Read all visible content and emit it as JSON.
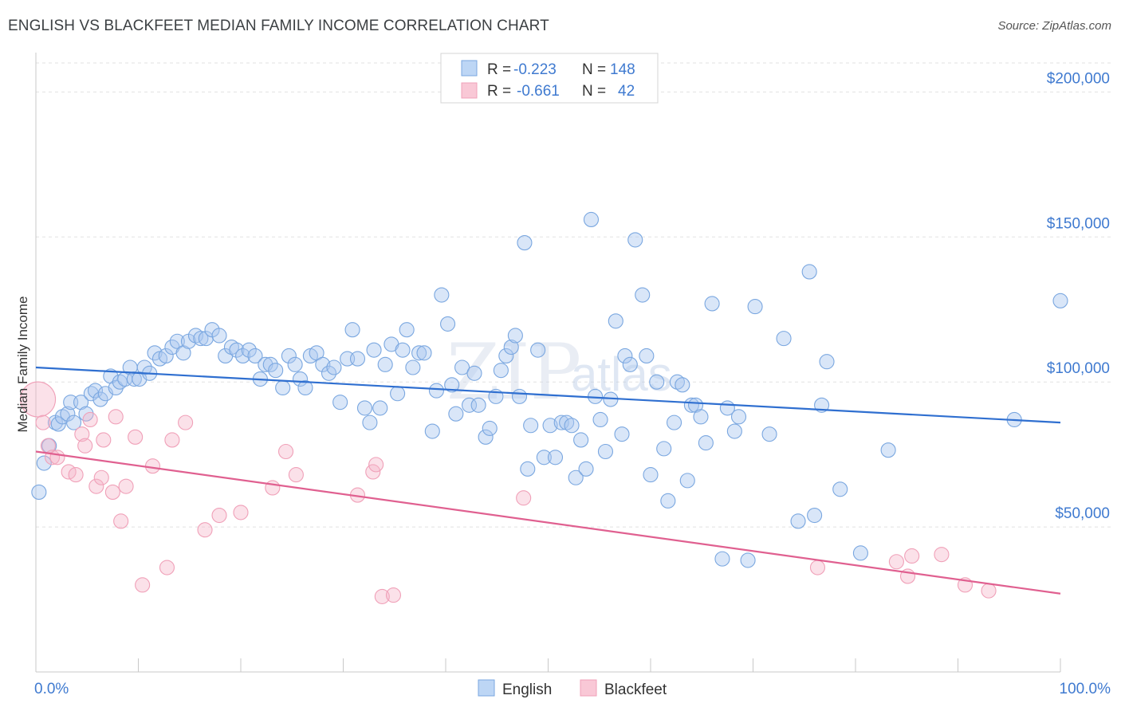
{
  "header": {
    "title": "ENGLISH VS BLACKFEET MEDIAN FAMILY INCOME CORRELATION CHART",
    "source": "Source: ZipAtlas.com"
  },
  "watermark": {
    "zip": "ZIP",
    "atlas": "atlas"
  },
  "legend_top": {
    "rows": [
      {
        "r_label": "R =",
        "r_value": "-0.223",
        "n_label": "N =",
        "n_value": "148",
        "color": "#a9c8f0"
      },
      {
        "r_label": "R =",
        "r_value": "-0.661",
        "n_label": "N =",
        "n_value": "42",
        "color": "#f5b8c9"
      }
    ]
  },
  "legend_bottom": {
    "english": "English",
    "blackfeet": "Blackfeet"
  },
  "chart_data": {
    "type": "scatter",
    "ylabel": "Median Family Income",
    "xlim": [
      0,
      100
    ],
    "ylim": [
      0,
      210000
    ],
    "x_tick_labels": [
      "0.0%",
      "100.0%"
    ],
    "y_ticks": [
      {
        "value": 50000,
        "label": "$50,000"
      },
      {
        "value": 100000,
        "label": "$100,000"
      },
      {
        "value": 150000,
        "label": "$150,000"
      },
      {
        "value": 200000,
        "label": "$200,000"
      }
    ],
    "grid": "horizontal dashed",
    "series": [
      {
        "name": "English",
        "color": "#7aa7e0",
        "line_color": "#2f6fd0",
        "trend": {
          "x": [
            0,
            100
          ],
          "y": [
            105000,
            86000
          ]
        },
        "points": [
          [
            0.3,
            62000
          ],
          [
            0.8,
            72000
          ],
          [
            1.3,
            78000
          ],
          [
            1.9,
            86000
          ],
          [
            2.2,
            85500
          ],
          [
            2.6,
            88000
          ],
          [
            3.1,
            89000
          ],
          [
            3.4,
            93000
          ],
          [
            3.7,
            86000
          ],
          [
            4.4,
            93000
          ],
          [
            4.9,
            89000
          ],
          [
            5.4,
            96000
          ],
          [
            5.8,
            97000
          ],
          [
            6.3,
            94000
          ],
          [
            6.8,
            96000
          ],
          [
            7.3,
            102000
          ],
          [
            7.8,
            98000
          ],
          [
            8.2,
            100000
          ],
          [
            8.7,
            101000
          ],
          [
            9.2,
            105000
          ],
          [
            9.6,
            101000
          ],
          [
            10.1,
            101000
          ],
          [
            10.6,
            105000
          ],
          [
            11.1,
            103000
          ],
          [
            11.6,
            110000
          ],
          [
            12.1,
            108000
          ],
          [
            12.7,
            109000
          ],
          [
            13.3,
            112000
          ],
          [
            13.8,
            114000
          ],
          [
            14.4,
            110000
          ],
          [
            14.9,
            114000
          ],
          [
            15.6,
            116000
          ],
          [
            16.1,
            115000
          ],
          [
            16.6,
            115000
          ],
          [
            17.2,
            118000
          ],
          [
            17.9,
            116000
          ],
          [
            18.5,
            109000
          ],
          [
            19.1,
            112000
          ],
          [
            19.6,
            111000
          ],
          [
            20.2,
            109000
          ],
          [
            20.8,
            111000
          ],
          [
            21.4,
            109000
          ],
          [
            21.9,
            101000
          ],
          [
            22.4,
            106000
          ],
          [
            22.9,
            106000
          ],
          [
            23.4,
            104000
          ],
          [
            24.1,
            98000
          ],
          [
            24.7,
            109000
          ],
          [
            25.3,
            106000
          ],
          [
            25.8,
            101000
          ],
          [
            26.3,
            98000
          ],
          [
            26.8,
            109000
          ],
          [
            27.4,
            110000
          ],
          [
            28.0,
            106000
          ],
          [
            28.6,
            103000
          ],
          [
            29.1,
            105000
          ],
          [
            29.7,
            93000
          ],
          [
            30.4,
            108000
          ],
          [
            30.9,
            118000
          ],
          [
            31.4,
            108000
          ],
          [
            32.1,
            91000
          ],
          [
            32.6,
            86000
          ],
          [
            33.0,
            111000
          ],
          [
            33.6,
            91000
          ],
          [
            34.1,
            106000
          ],
          [
            34.7,
            113000
          ],
          [
            35.3,
            96000
          ],
          [
            35.8,
            111000
          ],
          [
            36.2,
            118000
          ],
          [
            36.8,
            105000
          ],
          [
            37.4,
            110000
          ],
          [
            37.9,
            110000
          ],
          [
            38.7,
            83000
          ],
          [
            39.1,
            97000
          ],
          [
            39.6,
            130000
          ],
          [
            40.2,
            120000
          ],
          [
            40.6,
            99000
          ],
          [
            41.0,
            89000
          ],
          [
            41.6,
            105000
          ],
          [
            42.3,
            92000
          ],
          [
            42.8,
            103000
          ],
          [
            43.2,
            92000
          ],
          [
            43.9,
            81000
          ],
          [
            44.3,
            84000
          ],
          [
            44.9,
            95000
          ],
          [
            45.4,
            104000
          ],
          [
            45.9,
            109000
          ],
          [
            46.4,
            112000
          ],
          [
            46.8,
            116000
          ],
          [
            47.2,
            95000
          ],
          [
            47.7,
            148000
          ],
          [
            48.0,
            70000
          ],
          [
            48.3,
            85000
          ],
          [
            49.0,
            111000
          ],
          [
            49.6,
            74000
          ],
          [
            50.2,
            85000
          ],
          [
            50.7,
            74000
          ],
          [
            51.3,
            86000
          ],
          [
            51.8,
            86000
          ],
          [
            52.3,
            85000
          ],
          [
            52.7,
            67000
          ],
          [
            53.2,
            80000
          ],
          [
            53.7,
            70000
          ],
          [
            54.2,
            156000
          ],
          [
            54.6,
            95000
          ],
          [
            55.1,
            87000
          ],
          [
            55.6,
            76000
          ],
          [
            56.1,
            94000
          ],
          [
            56.6,
            121000
          ],
          [
            57.2,
            82000
          ],
          [
            57.5,
            109000
          ],
          [
            58.0,
            106000
          ],
          [
            58.5,
            149000
          ],
          [
            59.2,
            130000
          ],
          [
            59.6,
            109000
          ],
          [
            60.0,
            68000
          ],
          [
            60.6,
            100000
          ],
          [
            61.3,
            77000
          ],
          [
            61.7,
            59000
          ],
          [
            62.3,
            86000
          ],
          [
            62.6,
            100000
          ],
          [
            63.1,
            99000
          ],
          [
            63.6,
            66000
          ],
          [
            64.0,
            92000
          ],
          [
            64.4,
            92000
          ],
          [
            64.9,
            88000
          ],
          [
            65.4,
            79000
          ],
          [
            66.0,
            127000
          ],
          [
            67.0,
            39000
          ],
          [
            67.5,
            91000
          ],
          [
            68.2,
            83000
          ],
          [
            68.6,
            88000
          ],
          [
            69.5,
            38500
          ],
          [
            70.2,
            126000
          ],
          [
            71.6,
            82000
          ],
          [
            73.0,
            115000
          ],
          [
            74.4,
            52000
          ],
          [
            75.5,
            138000
          ],
          [
            76.0,
            54000
          ],
          [
            76.7,
            92000
          ],
          [
            77.2,
            107000
          ],
          [
            78.5,
            63000
          ],
          [
            80.5,
            41000
          ],
          [
            83.2,
            76500
          ],
          [
            95.5,
            87000
          ],
          [
            100.0,
            128000
          ]
        ]
      },
      {
        "name": "Blackfeet",
        "color": "#f0a0b8",
        "line_color": "#e06090",
        "trend": {
          "x": [
            0,
            100
          ],
          "y": [
            76000,
            27000
          ]
        },
        "points": [
          [
            0.2,
            94000
          ],
          [
            0.7,
            86000
          ],
          [
            1.2,
            78000
          ],
          [
            1.6,
            74000
          ],
          [
            2.1,
            74000
          ],
          [
            3.2,
            69000
          ],
          [
            3.9,
            68000
          ],
          [
            4.5,
            82000
          ],
          [
            4.8,
            78000
          ],
          [
            5.3,
            87000
          ],
          [
            5.9,
            64000
          ],
          [
            6.4,
            67000
          ],
          [
            6.6,
            80000
          ],
          [
            7.5,
            62000
          ],
          [
            7.8,
            88000
          ],
          [
            8.3,
            52000
          ],
          [
            8.8,
            64000
          ],
          [
            9.7,
            81000
          ],
          [
            10.4,
            30000
          ],
          [
            11.4,
            71000
          ],
          [
            12.8,
            36000
          ],
          [
            13.3,
            80000
          ],
          [
            14.6,
            86000
          ],
          [
            16.5,
            49000
          ],
          [
            17.9,
            54000
          ],
          [
            20.0,
            55000
          ],
          [
            23.1,
            63500
          ],
          [
            24.4,
            76000
          ],
          [
            25.4,
            68000
          ],
          [
            31.4,
            61000
          ],
          [
            32.9,
            69000
          ],
          [
            33.2,
            71500
          ],
          [
            33.8,
            26000
          ],
          [
            34.9,
            26500
          ],
          [
            47.6,
            60000
          ],
          [
            76.3,
            36000
          ],
          [
            84.0,
            38000
          ],
          [
            85.1,
            33000
          ],
          [
            85.5,
            40000
          ],
          [
            88.4,
            40500
          ],
          [
            90.7,
            30000
          ],
          [
            93.0,
            28000
          ]
        ]
      }
    ]
  }
}
